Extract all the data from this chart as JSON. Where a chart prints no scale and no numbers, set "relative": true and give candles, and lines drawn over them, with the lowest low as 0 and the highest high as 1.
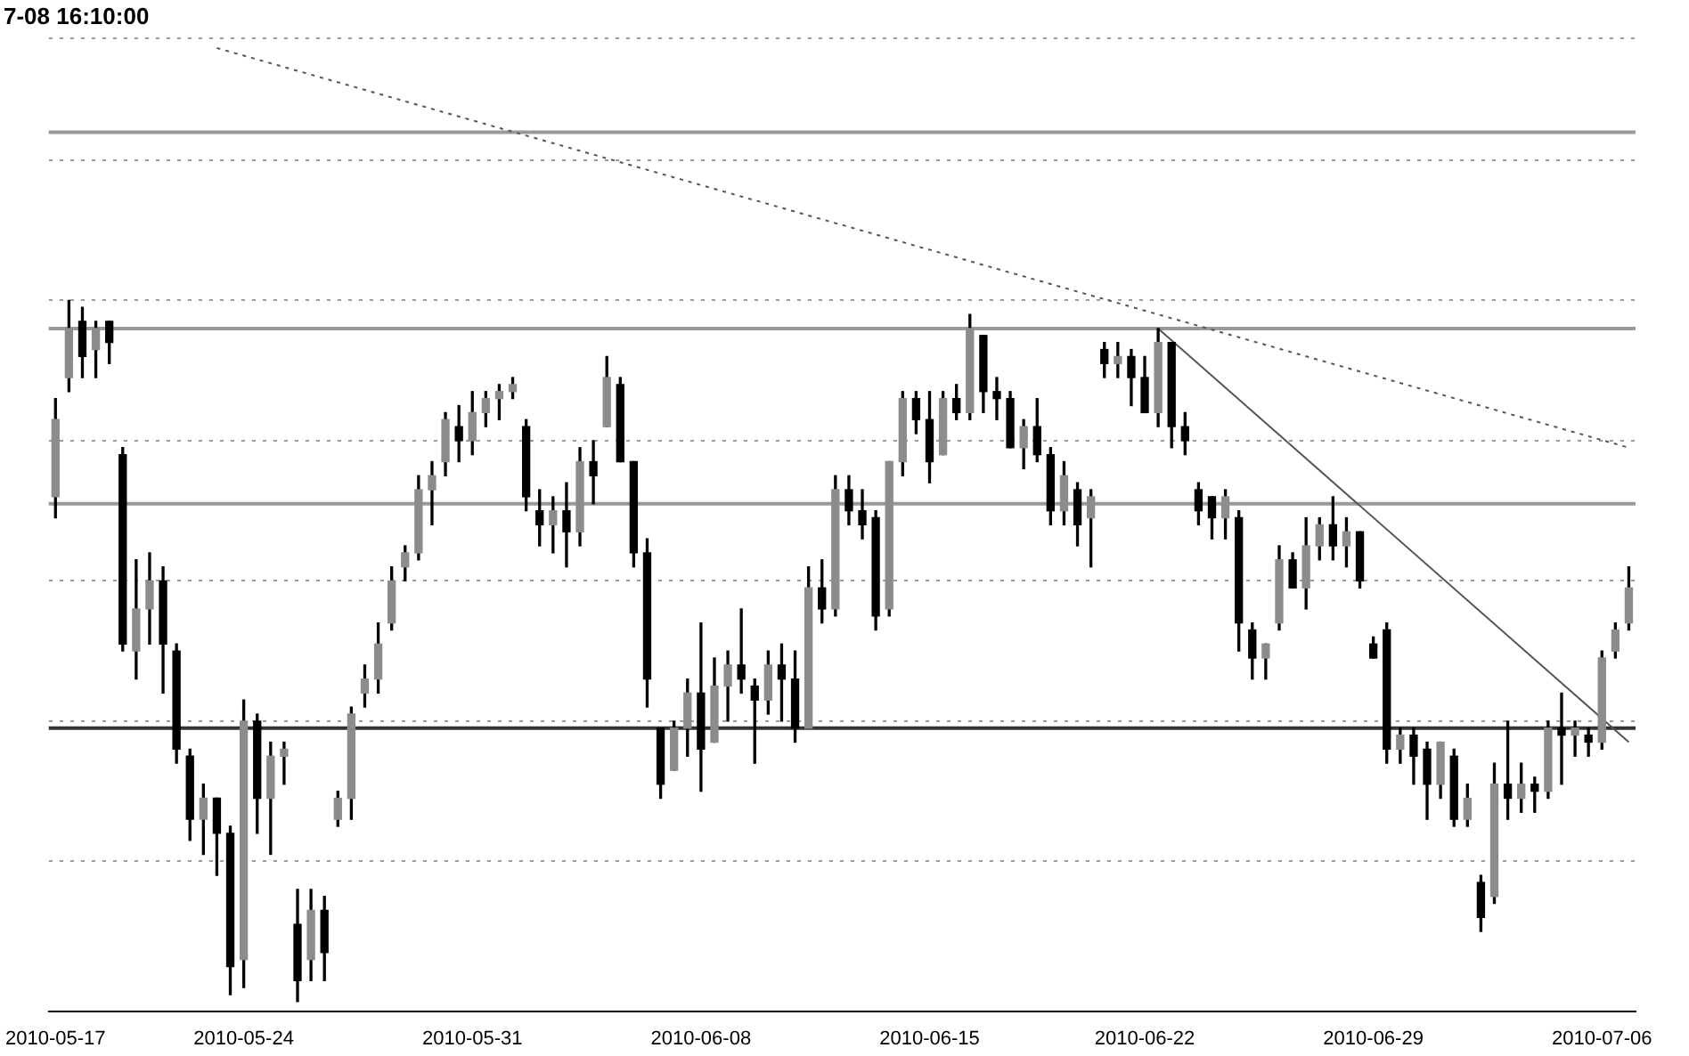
{
  "chart_data": {
    "type": "candlestick",
    "title": "7-08 16:10:00",
    "relative": true,
    "grid": "y",
    "legend": false,
    "categories": [
      "2010-05-17",
      null,
      null,
      null,
      null,
      null,
      null,
      null,
      null,
      null,
      null,
      null,
      null,
      null,
      "2010-05-24",
      null,
      null,
      null,
      null,
      null,
      null,
      null,
      null,
      null,
      null,
      null,
      null,
      null,
      null,
      null,
      null,
      "2010-05-31",
      null,
      null,
      null,
      null,
      null,
      null,
      null,
      null,
      null,
      null,
      null,
      null,
      null,
      null,
      null,
      null,
      "2010-06-08",
      null,
      null,
      null,
      null,
      null,
      null,
      null,
      null,
      null,
      null,
      null,
      null,
      null,
      null,
      null,
      null,
      "2010-06-15",
      null,
      null,
      null,
      null,
      null,
      null,
      null,
      null,
      null,
      null,
      null,
      null,
      null,
      null,
      null,
      "2010-06-22",
      null,
      null,
      null,
      null,
      null,
      null,
      null,
      null,
      null,
      null,
      null,
      null,
      null,
      null,
      null,
      null,
      "2010-06-29",
      null,
      null,
      null,
      null,
      null,
      null,
      null,
      null,
      null,
      null,
      null,
      null,
      null,
      null,
      null,
      null,
      "2010-07-06",
      null,
      null
    ],
    "ohlc": [
      [
        0.72,
        0.86,
        0.69,
        0.83
      ],
      [
        0.89,
        1,
        0.87,
        0.96
      ],
      [
        0.97,
        0.99,
        0.89,
        0.92
      ],
      [
        0.93,
        0.97,
        0.89,
        0.96
      ],
      [
        0.97,
        0.97,
        0.91,
        0.94
      ],
      [
        0.78,
        0.79,
        0.5,
        0.51
      ],
      [
        0.5,
        0.63,
        0.46,
        0.56
      ],
      [
        0.56,
        0.64,
        0.51,
        0.6
      ],
      [
        0.6,
        0.62,
        0.44,
        0.51
      ],
      [
        0.5,
        0.51,
        0.34,
        0.36
      ],
      [
        0.35,
        0.36,
        0.23,
        0.26
      ],
      [
        0.26,
        0.31,
        0.21,
        0.29
      ],
      [
        0.29,
        0.29,
        0.18,
        0.24
      ],
      [
        0.24,
        0.25,
        0.01,
        0.05
      ],
      [
        0.06,
        0.43,
        0.02,
        0.4
      ],
      [
        0.4,
        0.41,
        0.24,
        0.29
      ],
      [
        0.29,
        0.37,
        0.21,
        0.35
      ],
      [
        0.35,
        0.37,
        0.31,
        0.36
      ],
      [
        0.11,
        0.16,
        0,
        0.03
      ],
      [
        0.06,
        0.16,
        0.03,
        0.13
      ],
      [
        0.13,
        0.15,
        0.03,
        0.07
      ],
      [
        0.26,
        0.3,
        0.25,
        0.29
      ],
      [
        0.29,
        0.42,
        0.26,
        0.41
      ],
      [
        0.44,
        0.48,
        0.42,
        0.46
      ],
      [
        0.46,
        0.54,
        0.44,
        0.51
      ],
      [
        0.54,
        0.62,
        0.53,
        0.6
      ],
      [
        0.62,
        0.65,
        0.6,
        0.64
      ],
      [
        0.64,
        0.75,
        0.63,
        0.73
      ],
      [
        0.73,
        0.77,
        0.68,
        0.75
      ],
      [
        0.77,
        0.84,
        0.75,
        0.83
      ],
      [
        0.82,
        0.85,
        0.77,
        0.8
      ],
      [
        0.8,
        0.87,
        0.78,
        0.84
      ],
      [
        0.84,
        0.87,
        0.82,
        0.86
      ],
      [
        0.86,
        0.88,
        0.83,
        0.87
      ],
      [
        0.87,
        0.89,
        0.86,
        0.88
      ],
      [
        0.82,
        0.83,
        0.7,
        0.72
      ],
      [
        0.7,
        0.73,
        0.65,
        0.68
      ],
      [
        0.68,
        0.72,
        0.64,
        0.7
      ],
      [
        0.7,
        0.74,
        0.62,
        0.67
      ],
      [
        0.67,
        0.79,
        0.65,
        0.77
      ],
      [
        0.77,
        0.8,
        0.71,
        0.75
      ],
      [
        0.82,
        0.92,
        0.82,
        0.89
      ],
      [
        0.88,
        0.89,
        0.77,
        0.77
      ],
      [
        0.77,
        0.77,
        0.62,
        0.64
      ],
      [
        0.64,
        0.66,
        0.42,
        0.46
      ],
      [
        0.39,
        0.39,
        0.29,
        0.31
      ],
      [
        0.33,
        0.4,
        0.33,
        0.39
      ],
      [
        0.39,
        0.46,
        0.35,
        0.44
      ],
      [
        0.44,
        0.54,
        0.3,
        0.36
      ],
      [
        0.37,
        0.49,
        0.37,
        0.45
      ],
      [
        0.45,
        0.5,
        0.4,
        0.48
      ],
      [
        0.48,
        0.56,
        0.44,
        0.46
      ],
      [
        0.45,
        0.46,
        0.34,
        0.43
      ],
      [
        0.43,
        0.5,
        0.41,
        0.48
      ],
      [
        0.48,
        0.51,
        0.4,
        0.46
      ],
      [
        0.46,
        0.5,
        0.37,
        0.39
      ],
      [
        0.39,
        0.62,
        0.39,
        0.59
      ],
      [
        0.59,
        0.63,
        0.54,
        0.56
      ],
      [
        0.56,
        0.75,
        0.55,
        0.73
      ],
      [
        0.73,
        0.75,
        0.68,
        0.7
      ],
      [
        0.7,
        0.73,
        0.66,
        0.68
      ],
      [
        0.69,
        0.7,
        0.53,
        0.55
      ],
      [
        0.56,
        0.77,
        0.55,
        0.77
      ],
      [
        0.77,
        0.87,
        0.75,
        0.86
      ],
      [
        0.86,
        0.87,
        0.81,
        0.83
      ],
      [
        0.83,
        0.87,
        0.74,
        0.77
      ],
      [
        0.78,
        0.87,
        0.78,
        0.86
      ],
      [
        0.86,
        0.88,
        0.83,
        0.84
      ],
      [
        0.84,
        0.98,
        0.83,
        0.96
      ],
      [
        0.95,
        0.95,
        0.84,
        0.87
      ],
      [
        0.87,
        0.89,
        0.83,
        0.86
      ],
      [
        0.86,
        0.87,
        0.79,
        0.79
      ],
      [
        0.79,
        0.83,
        0.76,
        0.82
      ],
      [
        0.82,
        0.86,
        0.77,
        0.78
      ],
      [
        0.78,
        0.79,
        0.68,
        0.7
      ],
      [
        0.7,
        0.77,
        0.68,
        0.75
      ],
      [
        0.73,
        0.74,
        0.65,
        0.68
      ],
      [
        0.69,
        0.73,
        0.62,
        0.72
      ],
      [
        0.93,
        0.94,
        0.89,
        0.91
      ],
      [
        0.91,
        0.94,
        0.89,
        0.92
      ],
      [
        0.92,
        0.93,
        0.85,
        0.89
      ],
      [
        0.89,
        0.92,
        0.84,
        0.84
      ],
      [
        0.84,
        0.96,
        0.82,
        0.94
      ],
      [
        0.94,
        0.94,
        0.79,
        0.82
      ],
      [
        0.82,
        0.84,
        0.78,
        0.8
      ],
      [
        0.73,
        0.74,
        0.68,
        0.7
      ],
      [
        0.72,
        0.72,
        0.66,
        0.69
      ],
      [
        0.69,
        0.73,
        0.66,
        0.72
      ],
      [
        0.69,
        0.7,
        0.5,
        0.54
      ],
      [
        0.53,
        0.54,
        0.46,
        0.49
      ],
      [
        0.49,
        0.51,
        0.46,
        0.51
      ],
      [
        0.54,
        0.65,
        0.53,
        0.63
      ],
      [
        0.63,
        0.64,
        0.59,
        0.59
      ],
      [
        0.59,
        0.69,
        0.56,
        0.65
      ],
      [
        0.65,
        0.69,
        0.63,
        0.68
      ],
      [
        0.68,
        0.72,
        0.63,
        0.65
      ],
      [
        0.65,
        0.69,
        0.62,
        0.67
      ],
      [
        0.67,
        0.67,
        0.59,
        0.6
      ],
      [
        0.51,
        0.52,
        0.49,
        0.49
      ],
      [
        0.53,
        0.54,
        0.34,
        0.36
      ],
      [
        0.36,
        0.39,
        0.34,
        0.38
      ],
      [
        0.38,
        0.39,
        0.31,
        0.35
      ],
      [
        0.36,
        0.37,
        0.26,
        0.31
      ],
      [
        0.31,
        0.37,
        0.29,
        0.37
      ],
      [
        0.35,
        0.36,
        0.25,
        0.26
      ],
      [
        0.26,
        0.31,
        0.25,
        0.29
      ],
      [
        0.17,
        0.18,
        0.1,
        0.12
      ],
      [
        0.15,
        0.34,
        0.14,
        0.31
      ],
      [
        0.31,
        0.4,
        0.26,
        0.29
      ],
      [
        0.29,
        0.34,
        0.27,
        0.31
      ],
      [
        0.31,
        0.32,
        0.27,
        0.3
      ],
      [
        0.3,
        0.4,
        0.29,
        0.39
      ],
      [
        0.39,
        0.44,
        0.31,
        0.38
      ],
      [
        0.38,
        0.4,
        0.35,
        0.39
      ],
      [
        0.38,
        0.39,
        0.35,
        0.37
      ],
      [
        0.37,
        0.5,
        0.36,
        0.49
      ],
      [
        0.5,
        0.54,
        0.49,
        0.53
      ],
      [
        0.54,
        0.62,
        0.53,
        0.59
      ]
    ],
    "series": [
      {
        "type": "line",
        "line_style": "dotted",
        "color": "#555555",
        "values": [
          null,
          null,
          null,
          null,
          null,
          null,
          null,
          null,
          null,
          null,
          null,
          null,
          1.36,
          null,
          null,
          null,
          null,
          null,
          null,
          null,
          null,
          null,
          null,
          null,
          null,
          null,
          null,
          null,
          null,
          null,
          null,
          null,
          null,
          null,
          null,
          null,
          null,
          null,
          null,
          null,
          null,
          null,
          null,
          null,
          null,
          null,
          null,
          null,
          null,
          null,
          null,
          null,
          null,
          null,
          null,
          null,
          null,
          null,
          null,
          null,
          null,
          null,
          null,
          null,
          null,
          null,
          null,
          null,
          null,
          null,
          null,
          null,
          null,
          null,
          null,
          null,
          null,
          null,
          null,
          null,
          null,
          null,
          null,
          null,
          null,
          null,
          null,
          null,
          null,
          null,
          null,
          null,
          null,
          null,
          null,
          null,
          null,
          null,
          null,
          null,
          null,
          null,
          null,
          null,
          null,
          null,
          null,
          null,
          null,
          null,
          null,
          null,
          null,
          null,
          null,
          null,
          null,
          0.79
        ]
      },
      {
        "type": "line",
        "line_style": "solid",
        "color": "#555555",
        "values": [
          null,
          null,
          null,
          null,
          null,
          null,
          null,
          null,
          null,
          null,
          null,
          null,
          null,
          null,
          null,
          null,
          null,
          null,
          null,
          null,
          null,
          null,
          null,
          null,
          null,
          null,
          null,
          null,
          null,
          null,
          null,
          null,
          null,
          null,
          null,
          null,
          null,
          null,
          null,
          null,
          null,
          null,
          null,
          null,
          null,
          null,
          null,
          null,
          null,
          null,
          null,
          null,
          null,
          null,
          null,
          null,
          null,
          null,
          null,
          null,
          null,
          null,
          null,
          null,
          null,
          null,
          null,
          null,
          null,
          null,
          null,
          null,
          null,
          null,
          null,
          null,
          null,
          null,
          null,
          null,
          null,
          null,
          0.96,
          null,
          null,
          null,
          null,
          null,
          null,
          null,
          null,
          null,
          null,
          null,
          null,
          null,
          null,
          null,
          null,
          null,
          null,
          null,
          null,
          null,
          null,
          null,
          null,
          null,
          null,
          null,
          null,
          null,
          null,
          null,
          null,
          null,
          null,
          0.37
        ]
      }
    ],
    "ref_lines": [
      {
        "axis": "y",
        "value": 1.24,
        "color": "#999999"
      },
      {
        "axis": "y",
        "value": 0.96,
        "color": "#999999"
      },
      {
        "axis": "y",
        "value": 0.71,
        "color": "#999999"
      },
      {
        "axis": "y",
        "value": 0.39,
        "color": "#333333"
      }
    ]
  }
}
